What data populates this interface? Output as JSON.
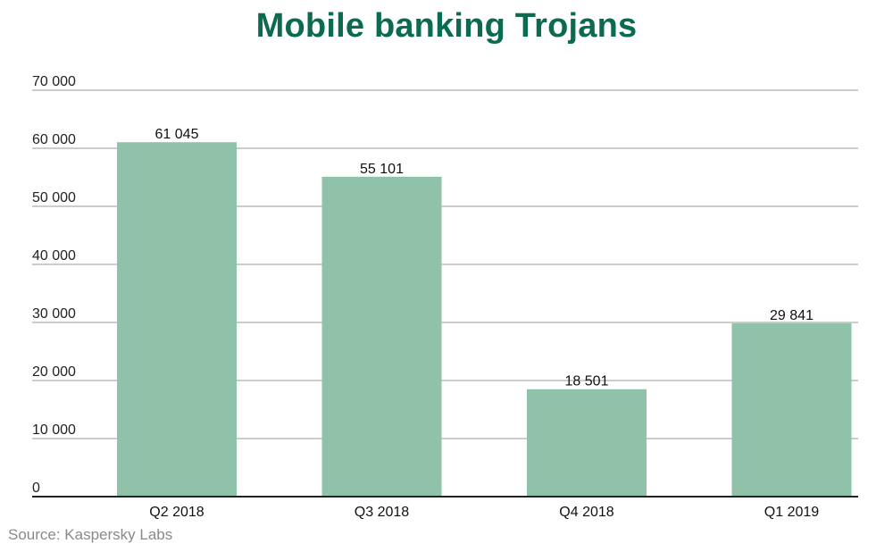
{
  "chart_data": {
    "type": "bar",
    "title": "Mobile banking Trojans",
    "categories": [
      "Q2 2018",
      "Q3 2018",
      "Q4 2018",
      "Q1 2019"
    ],
    "values": [
      61045,
      55101,
      18501,
      29841
    ],
    "value_labels": [
      "61 045",
      "55 101",
      "18 501",
      "29 841"
    ],
    "ylim": [
      0,
      70000
    ],
    "yticks": [
      0,
      10000,
      20000,
      30000,
      40000,
      50000,
      60000,
      70000
    ],
    "ytick_labels": [
      "0",
      "10 000",
      "20 000",
      "30 000",
      "40 000",
      "50 000",
      "60 000",
      "70 000"
    ],
    "xlabel": "",
    "ylabel": "",
    "grid": true,
    "legend": "none",
    "colors": {
      "bar": "#8fc2a8",
      "title": "#0b6b50",
      "grid": "#9a9a9a",
      "axis": "#222222"
    }
  },
  "source": "Source: Kaspersky Labs"
}
